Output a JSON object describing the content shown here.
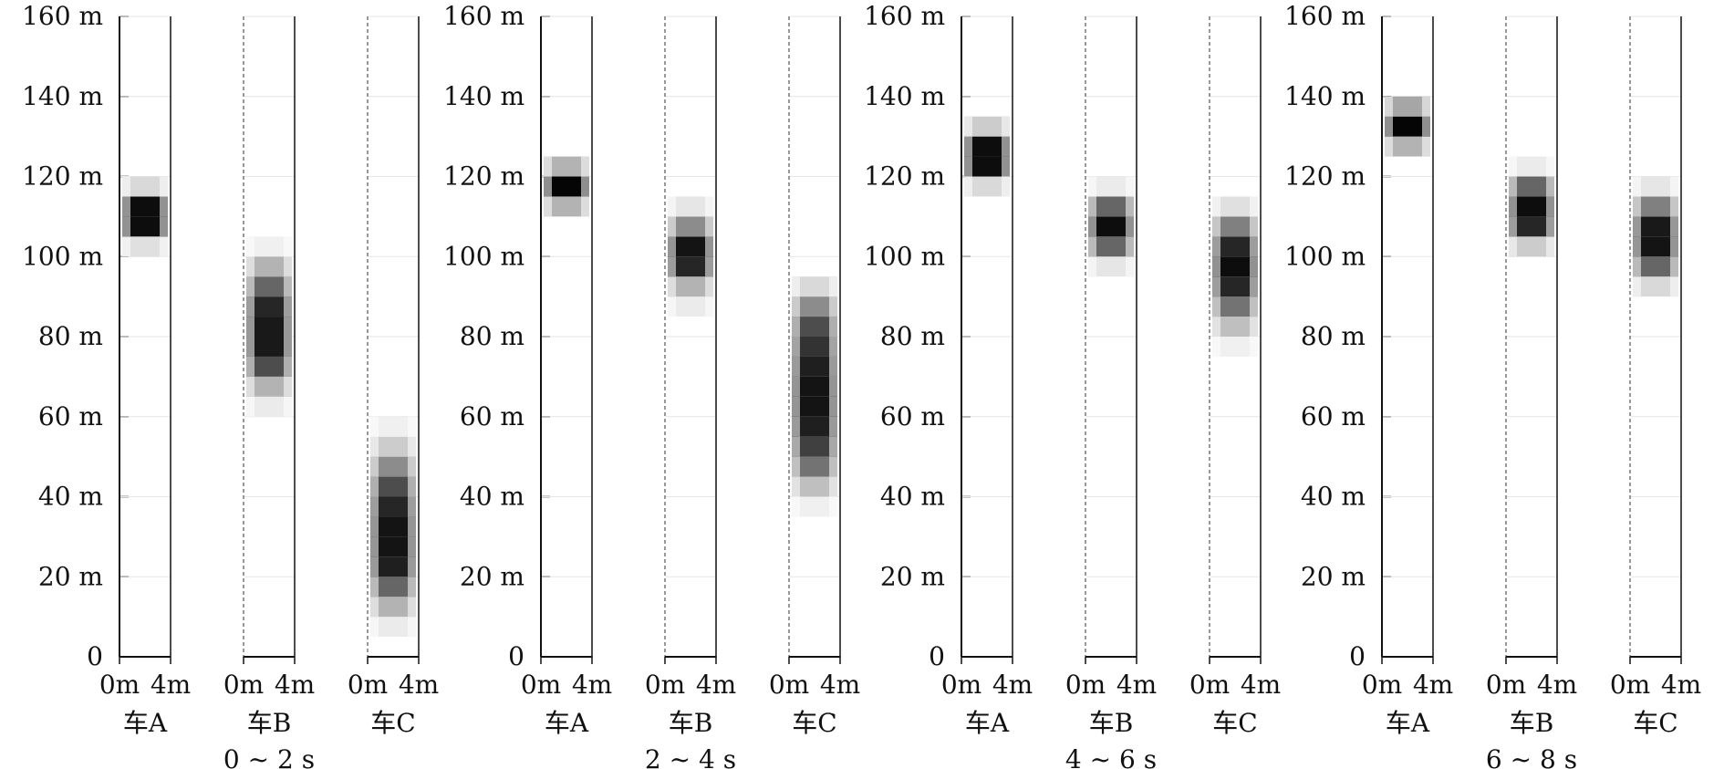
{
  "chart_data": [
    {
      "type": "heatmap",
      "period": "0 ~ 2 s",
      "ylim": [
        0,
        160
      ],
      "yticks": [
        "0",
        "20 m",
        "40 m",
        "60 m",
        "80 m",
        "100 m",
        "120 m",
        "140 m",
        "160 m"
      ],
      "lane_ticks": [
        "0m",
        "4m"
      ],
      "vehicles": [
        {
          "name": "车A",
          "center_m": 110,
          "extent_m": [
            100,
            120
          ],
          "cells": [
            {
              "y": [
                100,
                105
              ],
              "d": 0.12
            },
            {
              "y": [
                105,
                110
              ],
              "d": 0.95
            },
            {
              "y": [
                110,
                115
              ],
              "d": 0.95
            },
            {
              "y": [
                115,
                120
              ],
              "d": 0.15
            }
          ]
        },
        {
          "name": "车B",
          "center_m": 82,
          "extent_m": [
            60,
            105
          ],
          "cells": [
            {
              "y": [
                60,
                65
              ],
              "d": 0.08
            },
            {
              "y": [
                65,
                70
              ],
              "d": 0.3
            },
            {
              "y": [
                70,
                75
              ],
              "d": 0.7
            },
            {
              "y": [
                75,
                80
              ],
              "d": 0.9
            },
            {
              "y": [
                80,
                85
              ],
              "d": 0.9
            },
            {
              "y": [
                85,
                90
              ],
              "d": 0.85
            },
            {
              "y": [
                90,
                95
              ],
              "d": 0.6
            },
            {
              "y": [
                95,
                100
              ],
              "d": 0.3
            },
            {
              "y": [
                100,
                105
              ],
              "d": 0.06
            }
          ]
        },
        {
          "name": "车C",
          "center_m": 30,
          "extent_m": [
            5,
            60
          ],
          "cells": [
            {
              "y": [
                5,
                10
              ],
              "d": 0.08
            },
            {
              "y": [
                10,
                15
              ],
              "d": 0.3
            },
            {
              "y": [
                15,
                20
              ],
              "d": 0.6
            },
            {
              "y": [
                20,
                25
              ],
              "d": 0.88
            },
            {
              "y": [
                25,
                30
              ],
              "d": 0.92
            },
            {
              "y": [
                30,
                35
              ],
              "d": 0.92
            },
            {
              "y": [
                35,
                40
              ],
              "d": 0.85
            },
            {
              "y": [
                40,
                45
              ],
              "d": 0.7
            },
            {
              "y": [
                45,
                50
              ],
              "d": 0.45
            },
            {
              "y": [
                50,
                55
              ],
              "d": 0.2
            },
            {
              "y": [
                55,
                60
              ],
              "d": 0.06
            }
          ]
        }
      ]
    },
    {
      "type": "heatmap",
      "period": "2 ~ 4 s",
      "ylim": [
        0,
        160
      ],
      "yticks": [
        "0",
        "20 m",
        "40 m",
        "60 m",
        "80 m",
        "100 m",
        "120 m",
        "140 m",
        "160 m"
      ],
      "lane_ticks": [
        "0m",
        "4m"
      ],
      "vehicles": [
        {
          "name": "车A",
          "center_m": 118,
          "extent_m": [
            110,
            125
          ],
          "cells": [
            {
              "y": [
                110,
                115
              ],
              "d": 0.3
            },
            {
              "y": [
                115,
                120
              ],
              "d": 0.98
            },
            {
              "y": [
                120,
                125
              ],
              "d": 0.3
            }
          ]
        },
        {
          "name": "车B",
          "center_m": 101,
          "extent_m": [
            85,
            115
          ],
          "cells": [
            {
              "y": [
                85,
                90
              ],
              "d": 0.08
            },
            {
              "y": [
                90,
                95
              ],
              "d": 0.3
            },
            {
              "y": [
                95,
                100
              ],
              "d": 0.85
            },
            {
              "y": [
                100,
                105
              ],
              "d": 0.92
            },
            {
              "y": [
                105,
                110
              ],
              "d": 0.45
            },
            {
              "y": [
                110,
                115
              ],
              "d": 0.1
            }
          ]
        },
        {
          "name": "车C",
          "center_m": 65,
          "extent_m": [
            35,
            95
          ],
          "cells": [
            {
              "y": [
                35,
                40
              ],
              "d": 0.06
            },
            {
              "y": [
                40,
                45
              ],
              "d": 0.25
            },
            {
              "y": [
                45,
                50
              ],
              "d": 0.55
            },
            {
              "y": [
                50,
                55
              ],
              "d": 0.75
            },
            {
              "y": [
                55,
                60
              ],
              "d": 0.88
            },
            {
              "y": [
                60,
                65
              ],
              "d": 0.92
            },
            {
              "y": [
                65,
                70
              ],
              "d": 0.92
            },
            {
              "y": [
                70,
                75
              ],
              "d": 0.88
            },
            {
              "y": [
                75,
                80
              ],
              "d": 0.8
            },
            {
              "y": [
                80,
                85
              ],
              "d": 0.7
            },
            {
              "y": [
                85,
                90
              ],
              "d": 0.45
            },
            {
              "y": [
                90,
                95
              ],
              "d": 0.15
            }
          ]
        }
      ]
    },
    {
      "type": "heatmap",
      "period": "4 ~ 6 s",
      "ylim": [
        0,
        160
      ],
      "yticks": [
        "0",
        "20 m",
        "40 m",
        "60 m",
        "80 m",
        "100 m",
        "120 m",
        "140 m",
        "160 m"
      ],
      "lane_ticks": [
        "0m",
        "4m"
      ],
      "vehicles": [
        {
          "name": "车A",
          "center_m": 125,
          "extent_m": [
            115,
            135
          ],
          "cells": [
            {
              "y": [
                115,
                120
              ],
              "d": 0.15
            },
            {
              "y": [
                120,
                125
              ],
              "d": 0.95
            },
            {
              "y": [
                125,
                130
              ],
              "d": 0.95
            },
            {
              "y": [
                130,
                135
              ],
              "d": 0.2
            }
          ]
        },
        {
          "name": "车B",
          "center_m": 107,
          "extent_m": [
            95,
            120
          ],
          "cells": [
            {
              "y": [
                95,
                100
              ],
              "d": 0.1
            },
            {
              "y": [
                100,
                105
              ],
              "d": 0.6
            },
            {
              "y": [
                105,
                110
              ],
              "d": 0.95
            },
            {
              "y": [
                110,
                115
              ],
              "d": 0.6
            },
            {
              "y": [
                115,
                120
              ],
              "d": 0.08
            }
          ]
        },
        {
          "name": "车C",
          "center_m": 97,
          "extent_m": [
            75,
            115
          ],
          "cells": [
            {
              "y": [
                75,
                80
              ],
              "d": 0.06
            },
            {
              "y": [
                80,
                85
              ],
              "d": 0.25
            },
            {
              "y": [
                85,
                90
              ],
              "d": 0.55
            },
            {
              "y": [
                90,
                95
              ],
              "d": 0.85
            },
            {
              "y": [
                95,
                100
              ],
              "d": 0.95
            },
            {
              "y": [
                100,
                105
              ],
              "d": 0.85
            },
            {
              "y": [
                105,
                110
              ],
              "d": 0.5
            },
            {
              "y": [
                110,
                115
              ],
              "d": 0.12
            }
          ]
        }
      ]
    },
    {
      "type": "heatmap",
      "period": "6 ~ 8 s",
      "ylim": [
        0,
        160
      ],
      "yticks": [
        "0",
        "20 m",
        "40 m",
        "60 m",
        "80 m",
        "100 m",
        "120 m",
        "140 m",
        "160 m"
      ],
      "lane_ticks": [
        "0m",
        "4m"
      ],
      "vehicles": [
        {
          "name": "车A",
          "center_m": 133,
          "extent_m": [
            125,
            140
          ],
          "cells": [
            {
              "y": [
                125,
                130
              ],
              "d": 0.3
            },
            {
              "y": [
                130,
                135
              ],
              "d": 0.98
            },
            {
              "y": [
                135,
                140
              ],
              "d": 0.35
            }
          ]
        },
        {
          "name": "车B",
          "center_m": 110,
          "extent_m": [
            100,
            125
          ],
          "cells": [
            {
              "y": [
                100,
                105
              ],
              "d": 0.2
            },
            {
              "y": [
                105,
                110
              ],
              "d": 0.85
            },
            {
              "y": [
                110,
                115
              ],
              "d": 0.95
            },
            {
              "y": [
                115,
                120
              ],
              "d": 0.6
            },
            {
              "y": [
                120,
                125
              ],
              "d": 0.08
            }
          ]
        },
        {
          "name": "车C",
          "center_m": 103,
          "extent_m": [
            90,
            120
          ],
          "cells": [
            {
              "y": [
                90,
                95
              ],
              "d": 0.15
            },
            {
              "y": [
                95,
                100
              ],
              "d": 0.6
            },
            {
              "y": [
                100,
                105
              ],
              "d": 0.92
            },
            {
              "y": [
                105,
                110
              ],
              "d": 0.9
            },
            {
              "y": [
                110,
                115
              ],
              "d": 0.5
            },
            {
              "y": [
                115,
                120
              ],
              "d": 0.1
            }
          ]
        }
      ]
    }
  ]
}
